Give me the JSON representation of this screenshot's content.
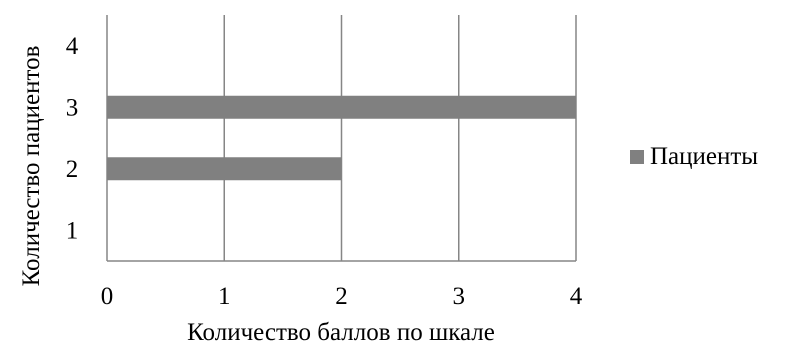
{
  "chart_data": {
    "type": "bar",
    "orientation": "horizontal",
    "categories": [
      "1",
      "2",
      "3",
      "4"
    ],
    "series": [
      {
        "name": "Пациенты",
        "values": [
          0,
          2,
          4,
          0
        ]
      }
    ],
    "xlabel": "Количество баллов по шкале",
    "ylabel": "Количество пациентов",
    "xlim": [
      0,
      4
    ],
    "xticks": [
      "0",
      "1",
      "2",
      "3",
      "4"
    ],
    "grid": "vertical",
    "legend_position": "right",
    "colors": {
      "bar": "#808080",
      "grid": "#868686",
      "axis": "#868686"
    }
  }
}
